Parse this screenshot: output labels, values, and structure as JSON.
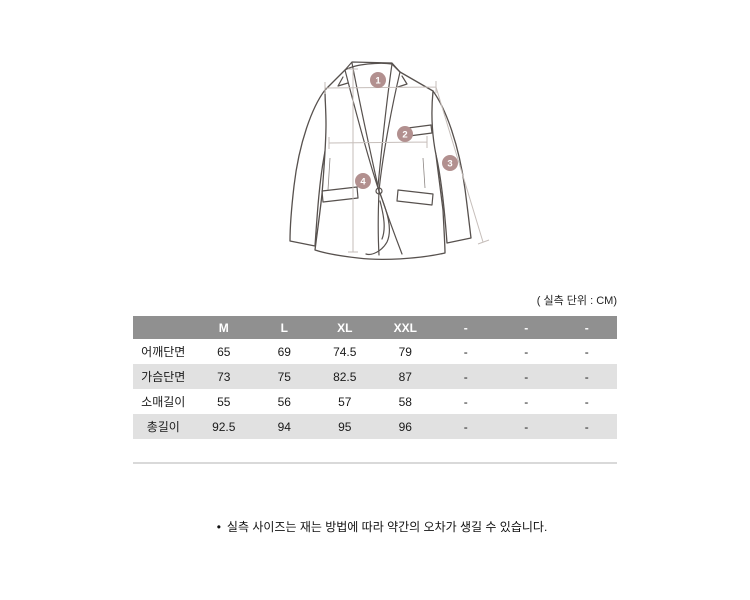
{
  "page": {
    "unit_label": "( 실측 단위 : CM)",
    "footnote_bullet": "•",
    "footnote": "실측 사이즈는 재는 방법에 따라 약간의 오차가 생길 수 있습니다."
  },
  "diagram": {
    "markers": [
      {
        "num": "1"
      },
      {
        "num": "2"
      },
      {
        "num": "3"
      },
      {
        "num": "4"
      }
    ],
    "colors": {
      "marker_fill": "#b2908f",
      "jacket_outline": "#57514e",
      "measure_line": "#c6beba"
    }
  },
  "size_table": {
    "header_bg": "#909090",
    "alt_row_bg": "#e1e1e1",
    "columns": [
      "",
      "M",
      "L",
      "XL",
      "XXL",
      "-",
      "-",
      "-"
    ],
    "rows": [
      {
        "label": "어깨단면",
        "values": [
          "65",
          "69",
          "74.5",
          "79",
          "-",
          "-",
          "-"
        ]
      },
      {
        "label": "가슴단면",
        "values": [
          "73",
          "75",
          "82.5",
          "87",
          "-",
          "-",
          "-"
        ]
      },
      {
        "label": "소매길이",
        "values": [
          "55",
          "56",
          "57",
          "58",
          "-",
          "-",
          "-"
        ]
      },
      {
        "label": "총길이",
        "values": [
          "92.5",
          "94",
          "95",
          "96",
          "-",
          "-",
          "-"
        ]
      }
    ]
  }
}
